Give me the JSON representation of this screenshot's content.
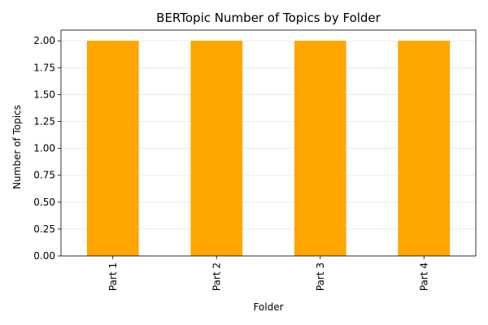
{
  "chart_data": {
    "type": "bar",
    "title": "BERTopic Number of Topics by Folder",
    "xlabel": "Folder",
    "ylabel": "Number of Topics",
    "categories": [
      "Part 1",
      "Part 2",
      "Part 3",
      "Part 4"
    ],
    "values": [
      2,
      2,
      2,
      2
    ],
    "ylim": [
      0,
      2.1
    ],
    "yticks": [
      "0.00",
      "0.25",
      "0.50",
      "0.75",
      "1.00",
      "1.25",
      "1.50",
      "1.75",
      "2.00"
    ],
    "grid": "y-axis, light",
    "bar_color": "#ffa500",
    "grid_color": "#e6e6e6",
    "legend": "none"
  }
}
